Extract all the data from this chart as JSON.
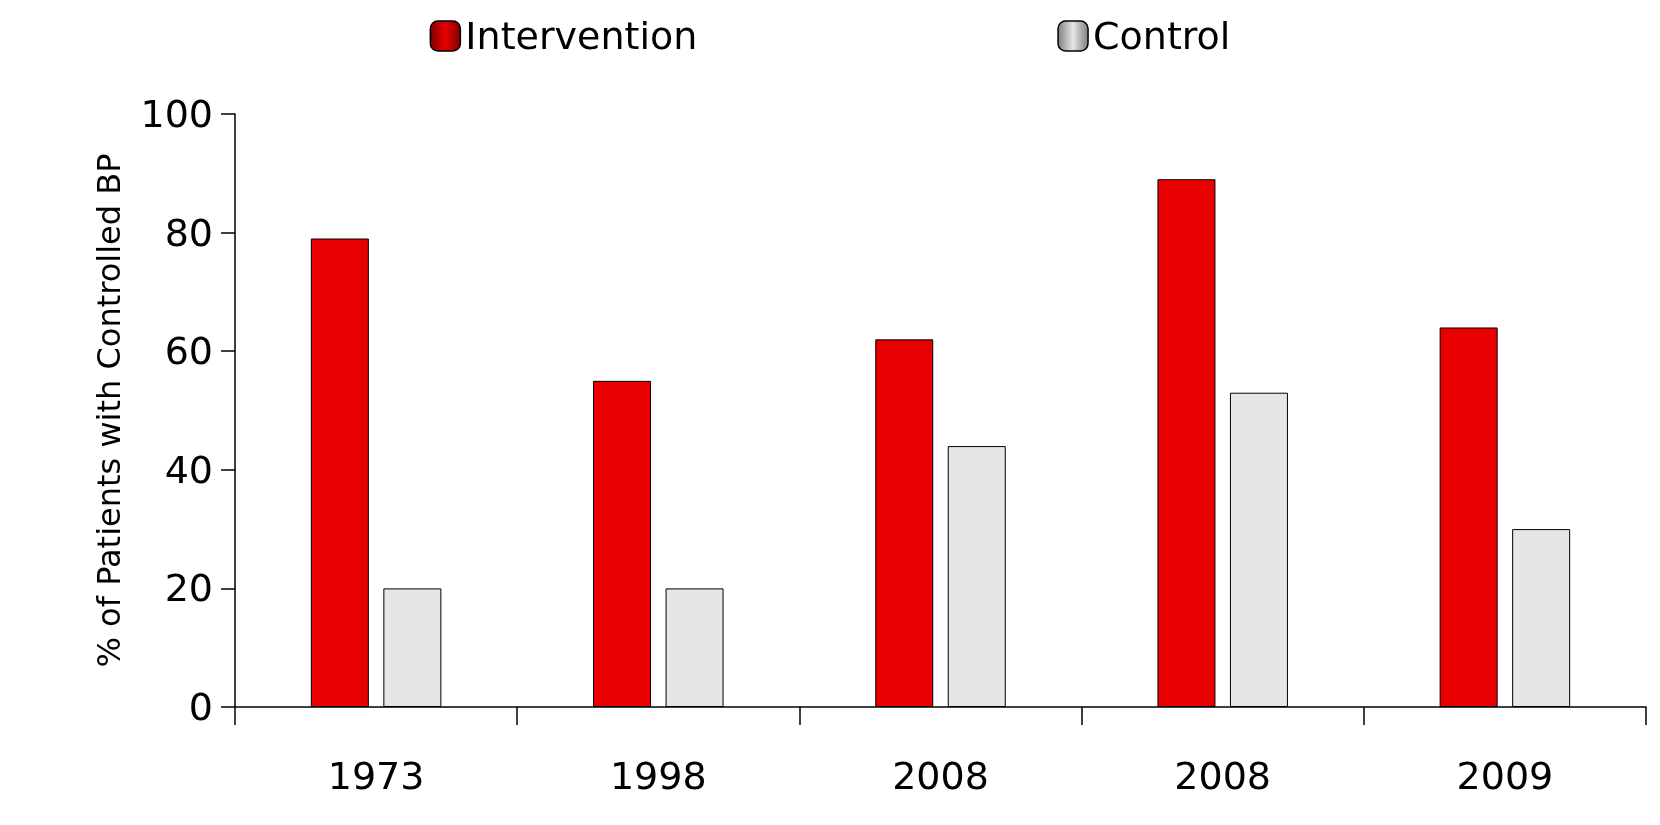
{
  "chart_data": {
    "type": "bar",
    "ylabel": "% of Patients with Controlled BP",
    "categories": [
      "1973",
      "1998",
      "2008",
      "2008",
      "2009"
    ],
    "series": [
      {
        "name": "Intervention",
        "color": "#e80000",
        "values": [
          79,
          55,
          62,
          89,
          64
        ]
      },
      {
        "name": "Control",
        "color": "#e6e6e6",
        "values": [
          20,
          20,
          44,
          53,
          30
        ]
      }
    ],
    "ylim": [
      0,
      100
    ],
    "yticks": [
      0,
      20,
      40,
      60,
      80,
      100
    ],
    "grid": false,
    "legend": "top"
  }
}
